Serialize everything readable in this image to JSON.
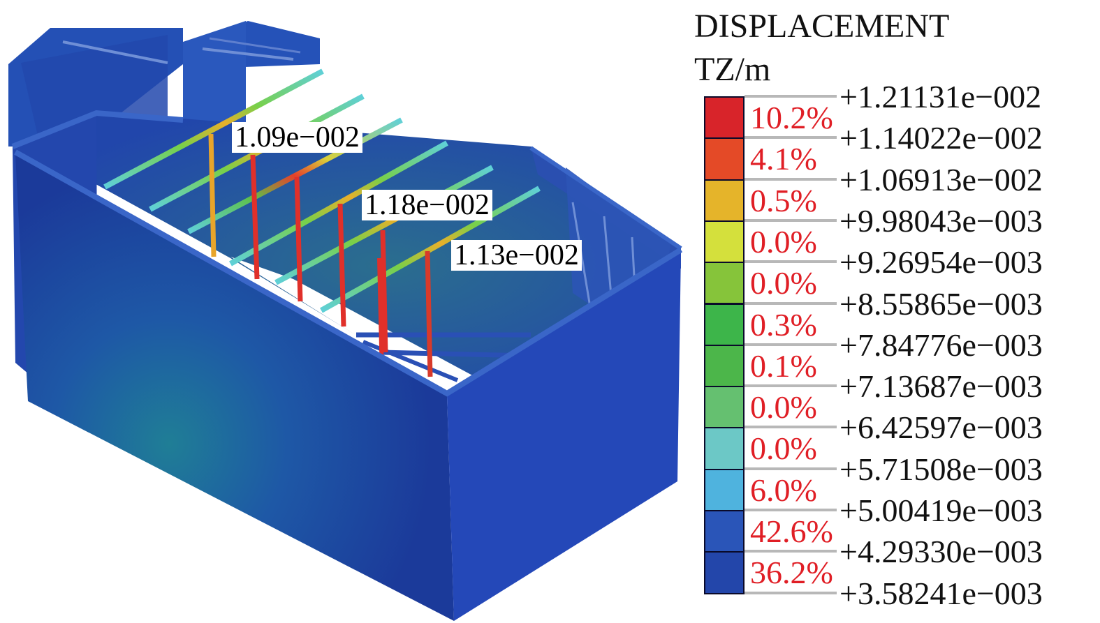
{
  "colors": {
    "shell_dark": "#1a3a9c",
    "shell_mid": "#2448b8",
    "background": "#ffffff",
    "pct_text": "#e01e25",
    "band_colors": [
      "#d8242a",
      "#e44a27",
      "#e5b42a",
      "#d4e03c",
      "#86c43a",
      "#3db54a",
      "#4cb64a",
      "#65c070",
      "#6cc8c6",
      "#4fb3de",
      "#2a55b8",
      "#2346aa"
    ]
  },
  "probes": [
    {
      "label": "1.09e−002"
    },
    {
      "label": "1.18e−002"
    },
    {
      "label": "1.13e−002"
    }
  ],
  "legend": {
    "title": "DISPLACEMENT",
    "unit": "TZ/m",
    "ticks": [
      "+1.21131e−002",
      "+1.14022e−002",
      "+1.06913e−002",
      "+9.98043e−003",
      "+9.26954e−003",
      "+8.55865e−003",
      "+7.84776e−003",
      "+7.13687e−003",
      "+6.42597e−003",
      "+5.71508e−003",
      "+5.00419e−003",
      "+4.29330e−003",
      "+3.58241e−003"
    ],
    "percents": [
      "10.2%",
      "4.1%",
      "0.5%",
      "0.0%",
      "0.0%",
      "0.3%",
      "0.1%",
      "0.0%",
      "0.0%",
      "6.0%",
      "42.6%",
      "36.2%"
    ]
  }
}
